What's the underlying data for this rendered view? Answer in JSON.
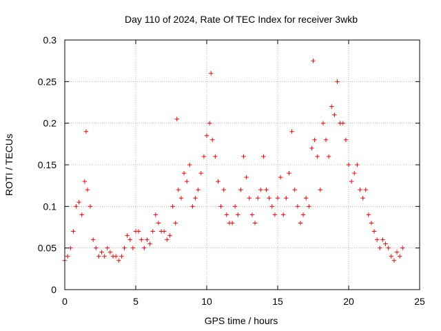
{
  "chart_data": {
    "type": "scatter",
    "title": "Day 110 of 2024, Rate Of TEC Index for receiver 3wkb",
    "xlabel": "GPS time / hours",
    "ylabel": "ROTI / TECUs",
    "xlim": [
      0,
      25
    ],
    "ylim": [
      0,
      0.3
    ],
    "x_ticks": [
      0,
      5,
      10,
      15,
      20,
      25
    ],
    "y_ticks": [
      0,
      0.05,
      0.1,
      0.15,
      0.2,
      0.25,
      0.3
    ],
    "x_tick_labels": [
      "0",
      "5",
      "10",
      "15",
      "20",
      "25"
    ],
    "y_tick_labels": [
      "0",
      "0.05",
      "0.1",
      "0.15",
      "0.2",
      "0.25",
      "0.3"
    ],
    "grid": true,
    "legend": "none",
    "marker": "+",
    "series_color": "#ff0000",
    "series": [
      {
        "x": [
          0.0,
          0.2,
          0.4,
          0.6,
          0.8,
          1.0,
          1.2,
          1.4,
          1.5,
          1.6,
          1.8,
          2.0,
          2.2,
          2.4,
          2.6,
          2.8,
          3.0,
          3.2,
          3.4,
          3.6,
          3.8,
          4.0,
          4.2,
          4.4,
          4.6,
          4.8,
          5.0,
          5.2,
          5.4,
          5.6,
          5.8,
          6.0,
          6.2,
          6.4,
          6.6,
          6.8,
          7.0,
          7.2,
          7.4,
          7.6,
          7.8,
          7.9,
          8.0,
          8.2,
          8.4,
          8.6,
          8.8,
          9.0,
          9.2,
          9.4,
          9.6,
          9.8,
          10.0,
          10.2,
          10.3,
          10.4,
          10.6,
          10.8,
          11.0,
          11.2,
          11.4,
          11.6,
          11.8,
          12.0,
          12.2,
          12.4,
          12.6,
          12.8,
          13.0,
          13.2,
          13.4,
          13.6,
          13.8,
          14.0,
          14.2,
          14.4,
          14.6,
          14.8,
          15.0,
          15.2,
          15.4,
          15.6,
          15.8,
          16.0,
          16.2,
          16.4,
          16.6,
          16.8,
          17.0,
          17.2,
          17.4,
          17.5,
          17.6,
          17.8,
          18.0,
          18.2,
          18.4,
          18.6,
          18.8,
          19.0,
          19.2,
          19.4,
          19.6,
          19.8,
          20.0,
          20.2,
          20.4,
          20.6,
          20.8,
          21.0,
          21.2,
          21.4,
          21.6,
          21.8,
          22.0,
          22.2,
          22.4,
          22.6,
          22.8,
          23.0,
          23.2,
          23.4,
          23.6,
          23.8
        ],
        "y": [
          0.035,
          0.04,
          0.05,
          0.07,
          0.1,
          0.105,
          0.09,
          0.13,
          0.19,
          0.12,
          0.1,
          0.06,
          0.05,
          0.04,
          0.045,
          0.04,
          0.05,
          0.045,
          0.04,
          0.04,
          0.035,
          0.04,
          0.05,
          0.065,
          0.06,
          0.05,
          0.07,
          0.07,
          0.06,
          0.05,
          0.06,
          0.055,
          0.07,
          0.09,
          0.08,
          0.07,
          0.07,
          0.06,
          0.065,
          0.1,
          0.08,
          0.205,
          0.12,
          0.11,
          0.14,
          0.13,
          0.15,
          0.1,
          0.11,
          0.12,
          0.14,
          0.16,
          0.185,
          0.2,
          0.26,
          0.18,
          0.16,
          0.13,
          0.1,
          0.12,
          0.09,
          0.08,
          0.08,
          0.1,
          0.09,
          0.12,
          0.16,
          0.135,
          0.11,
          0.09,
          0.08,
          0.11,
          0.12,
          0.16,
          0.12,
          0.11,
          0.1,
          0.09,
          0.11,
          0.135,
          0.09,
          0.11,
          0.14,
          0.19,
          0.12,
          0.1,
          0.08,
          0.09,
          0.11,
          0.1,
          0.17,
          0.275,
          0.18,
          0.16,
          0.12,
          0.2,
          0.18,
          0.16,
          0.22,
          0.21,
          0.25,
          0.2,
          0.2,
          0.18,
          0.15,
          0.13,
          0.14,
          0.15,
          0.12,
          0.11,
          0.12,
          0.09,
          0.08,
          0.07,
          0.06,
          0.05,
          0.06,
          0.055,
          0.05,
          0.04,
          0.035,
          0.045,
          0.04,
          0.05
        ]
      }
    ]
  }
}
